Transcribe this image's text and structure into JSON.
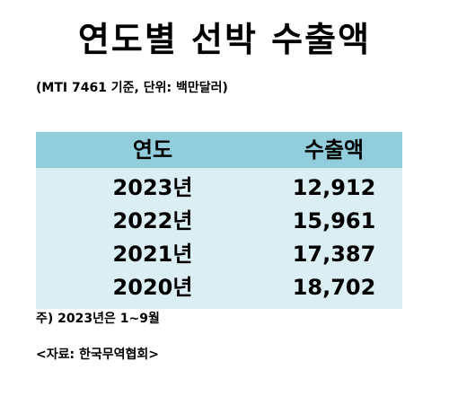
{
  "title": "연도별 선박 수출액",
  "subtitle": "(MTI 7461 기준,  단위: 백만달러)",
  "table": {
    "header": {
      "year": "연도",
      "value": "수출액"
    },
    "rows": [
      {
        "year": "2023년",
        "value": "12,912"
      },
      {
        "year": "2022년",
        "value": "15,961"
      },
      {
        "year": "2021년",
        "value": "17,387"
      },
      {
        "year": "2020년",
        "value": "18,702"
      }
    ]
  },
  "note": "주) 2023년은 1~9월",
  "source": "<자료: 한국무역협회>",
  "colors": {
    "header_bg": "#92cddc",
    "body_bg": "#dbeef3"
  }
}
